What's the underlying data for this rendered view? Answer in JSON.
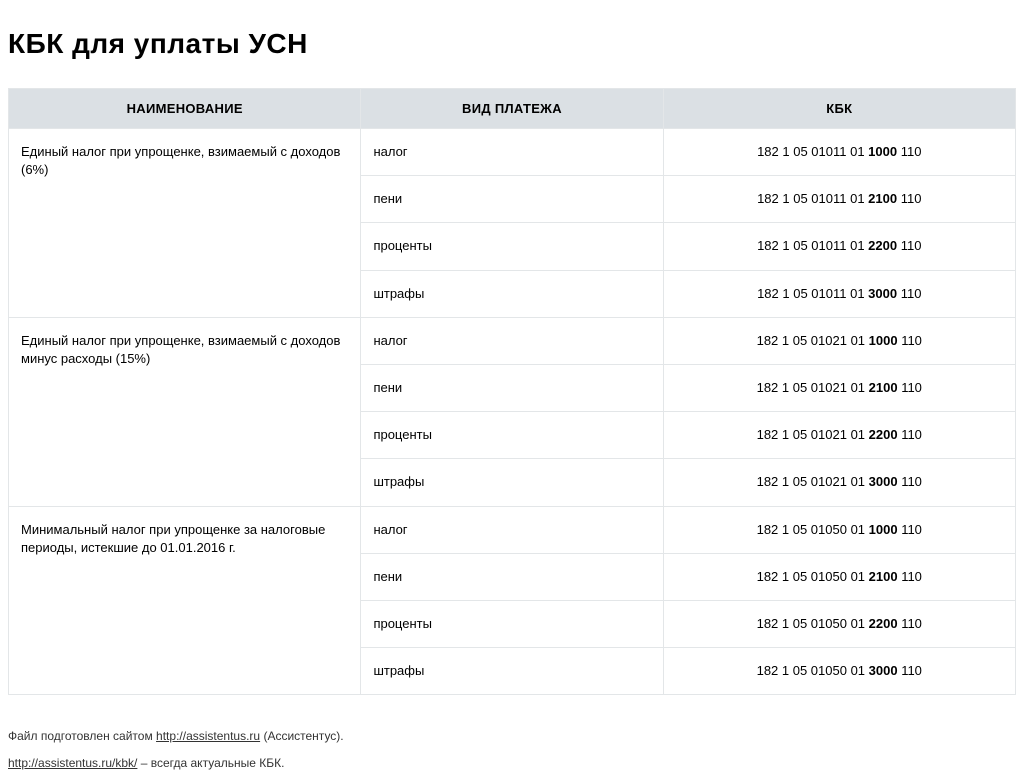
{
  "title": "КБК для уплаты УСН",
  "columns": [
    "НАИМЕНОВАНИЕ",
    "ВИД ПЛАТЕЖА",
    "КБК"
  ],
  "groups": [
    {
      "name": "Единый налог при упрощенке, взимаемый с доходов (6%)",
      "rows": [
        {
          "type": "налог",
          "code_pre": "182 1 05 01011 01 ",
          "code_bold": "1000",
          "code_post": " 110"
        },
        {
          "type": "пени",
          "code_pre": "182 1 05 01011 01 ",
          "code_bold": "2100",
          "code_post": " 110"
        },
        {
          "type": "проценты",
          "code_pre": "182 1 05 01011 01 ",
          "code_bold": "2200",
          "code_post": " 110"
        },
        {
          "type": "штрафы",
          "code_pre": "182 1 05 01011 01 ",
          "code_bold": "3000",
          "code_post": " 110"
        }
      ]
    },
    {
      "name": "Единый налог при упрощенке, взимаемый с доходов минус расходы (15%)",
      "rows": [
        {
          "type": "налог",
          "code_pre": "182 1 05 01021 01 ",
          "code_bold": "1000",
          "code_post": " 110"
        },
        {
          "type": "пени",
          "code_pre": "182 1 05 01021 01 ",
          "code_bold": "2100",
          "code_post": " 110"
        },
        {
          "type": "проценты",
          "code_pre": "182 1 05 01021 01 ",
          "code_bold": "2200",
          "code_post": " 110"
        },
        {
          "type": "штрафы",
          "code_pre": "182 1 05 01021 01 ",
          "code_bold": "3000",
          "code_post": " 110"
        }
      ]
    },
    {
      "name": "Минимальный налог при упрощенке за налоговые периоды, истекшие до 01.01.2016 г.",
      "rows": [
        {
          "type": "налог",
          "code_pre": "182 1 05 01050 01 ",
          "code_bold": "1000",
          "code_post": " 110"
        },
        {
          "type": "пени",
          "code_pre": "182 1 05 01050 01 ",
          "code_bold": "2100",
          "code_post": " 110"
        },
        {
          "type": "проценты",
          "code_pre": "182 1 05 01050 01 ",
          "code_bold": "2200",
          "code_post": " 110"
        },
        {
          "type": "штрафы",
          "code_pre": "182 1 05 01050 01 ",
          "code_bold": "3000",
          "code_post": " 110"
        }
      ]
    }
  ],
  "footer": {
    "line1_pre": "Файл подготовлен сайтом ",
    "line1_link": "http://assistentus.ru",
    "line1_post": " (Ассистентус).",
    "line2_link": "http://assistentus.ru/kbk/",
    "line2_post": " – всегда актуальные КБК."
  },
  "style": {
    "header_bg": "#dbe0e4",
    "border_color": "#e3e6e8",
    "body_bg": "#ffffff",
    "text_color": "#000000",
    "footer_color": "#333333",
    "title_fontsize": 28,
    "cell_fontsize": 13,
    "footer_fontsize": 12
  }
}
